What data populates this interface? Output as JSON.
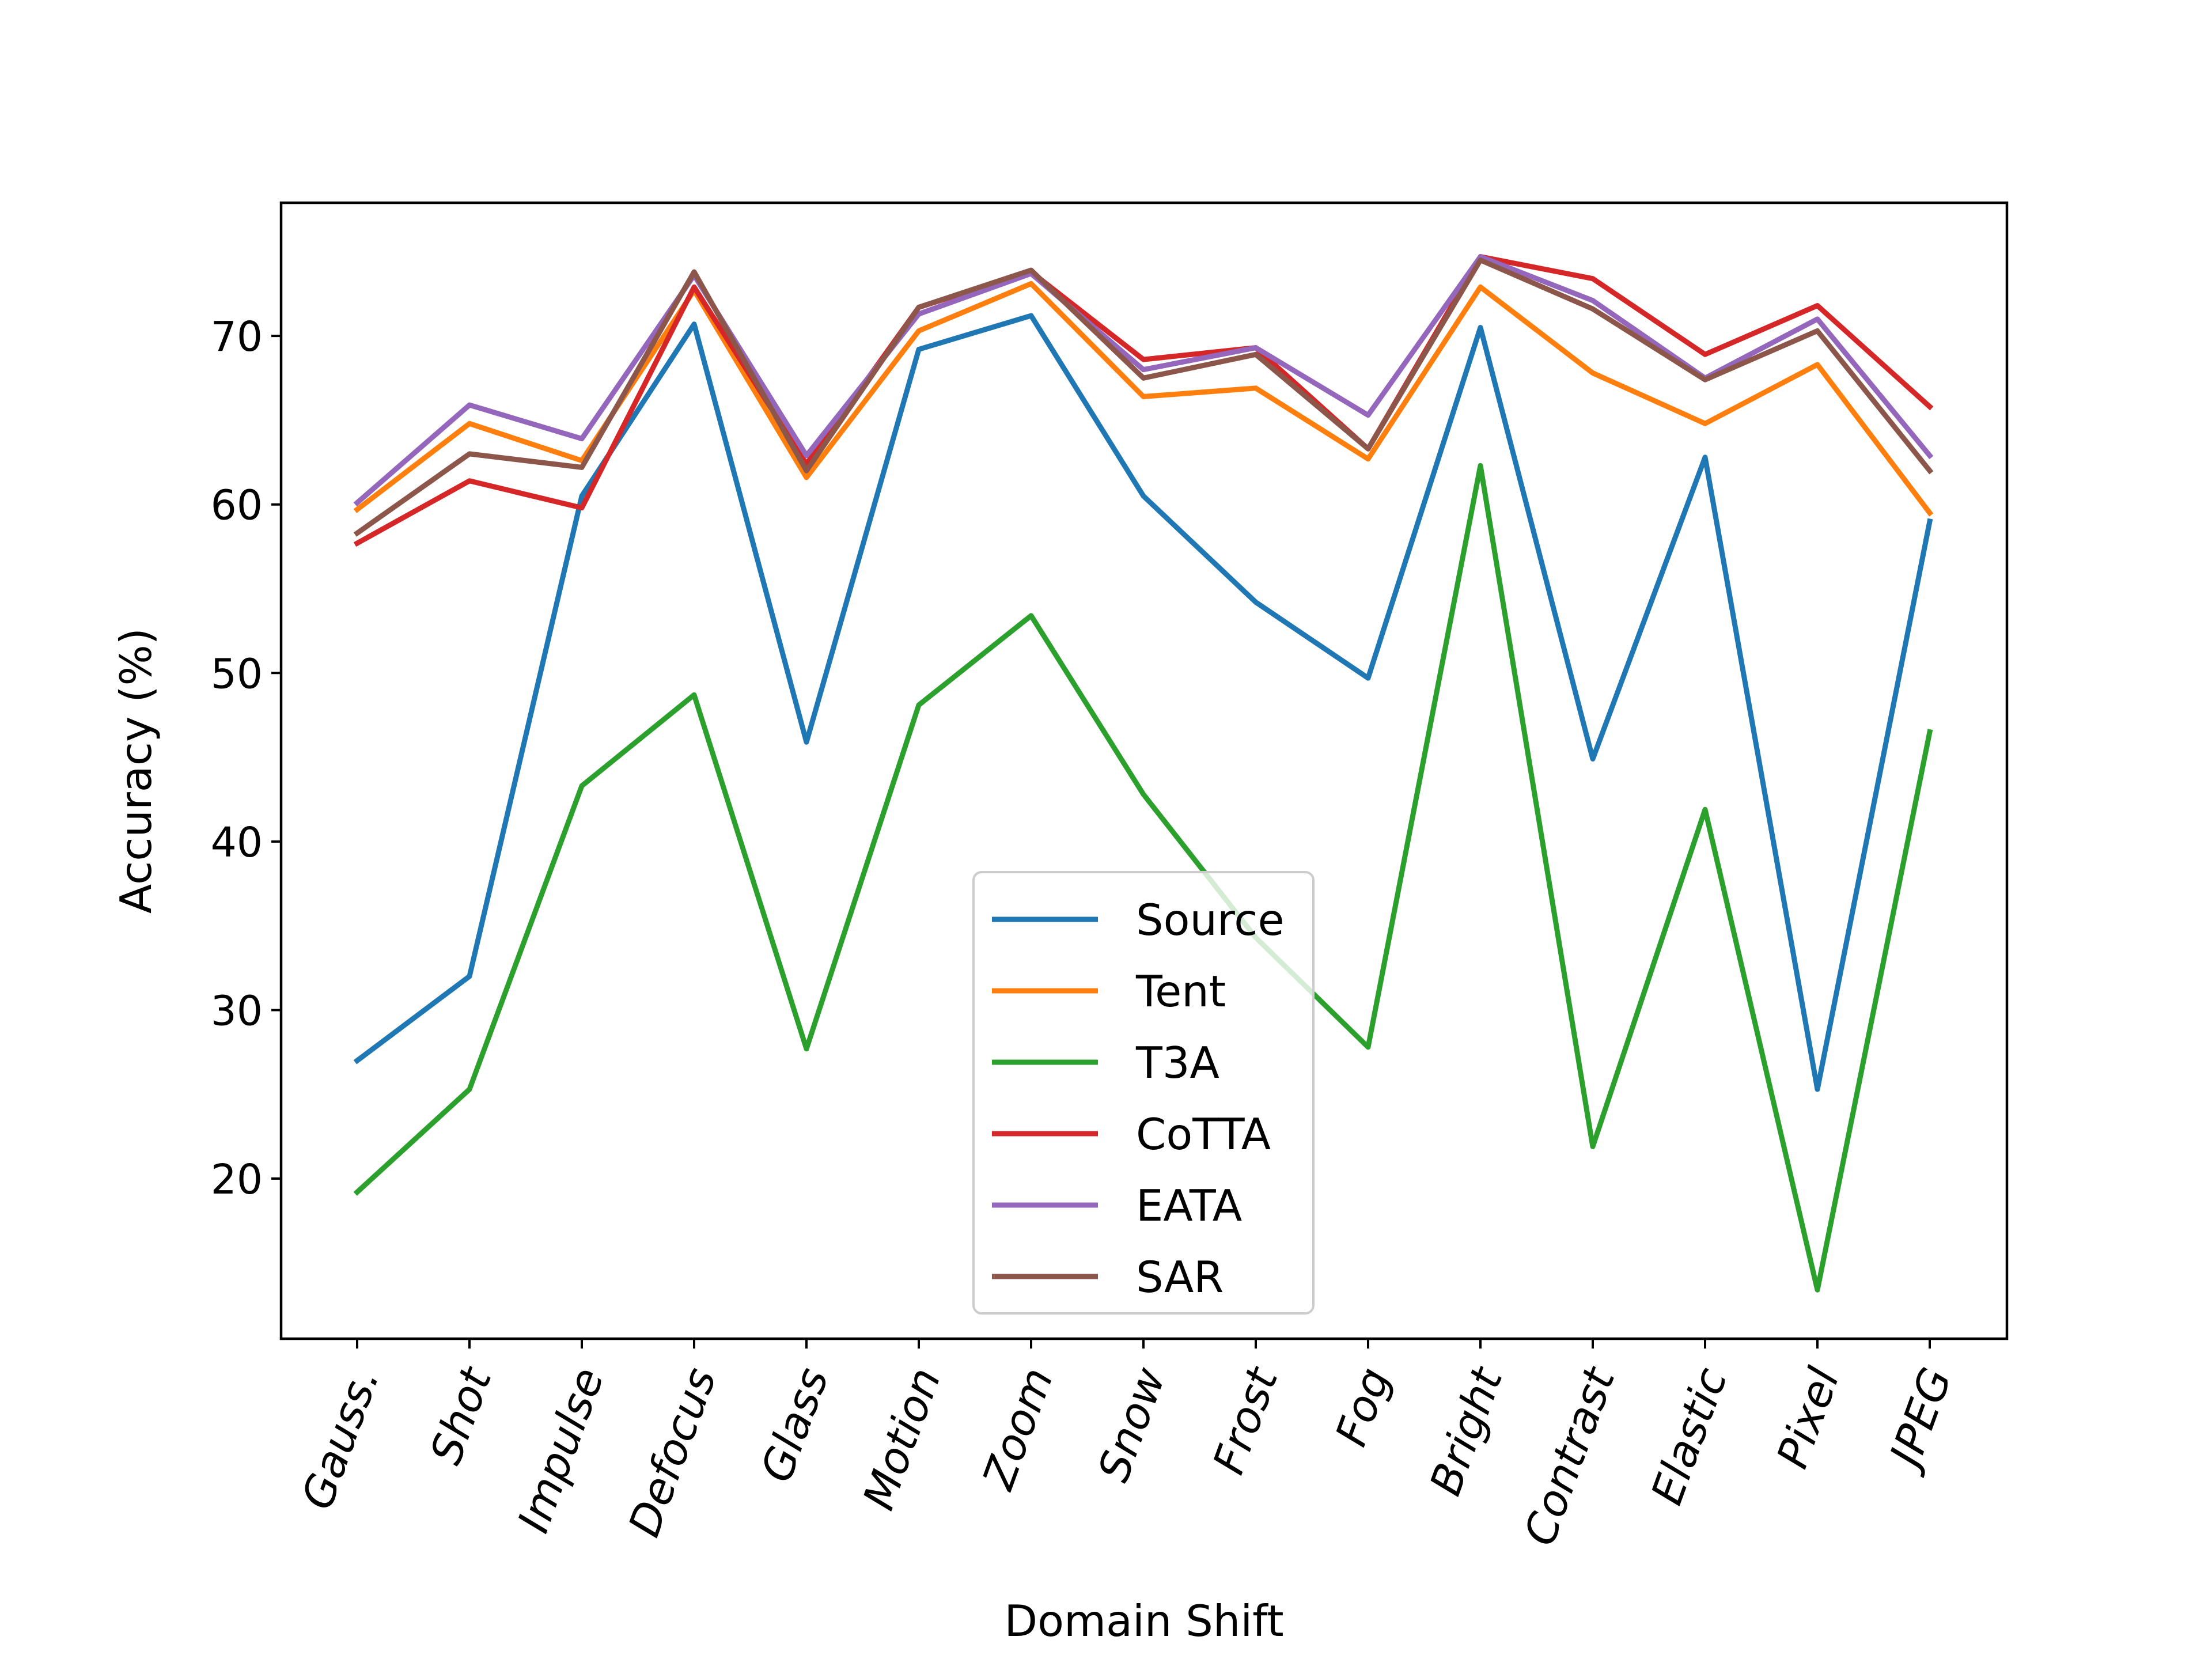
{
  "chart_data": {
    "type": "line",
    "title": "",
    "xlabel": "Domain Shift",
    "ylabel": "Accuracy (%)",
    "categories": [
      "Gauss.",
      "Shot",
      "Impulse",
      "Defocus",
      "Glass",
      "Motion",
      "Zoom",
      "Snow",
      "Frost",
      "Fog",
      "Bright",
      "Contrast",
      "Elastic",
      "Pixel",
      "JPEG"
    ],
    "ylim": [
      10.5,
      77.9
    ],
    "yticks": [
      20,
      30,
      40,
      50,
      60,
      70
    ],
    "grid": false,
    "legend_position": "lower center",
    "series": [
      {
        "name": "Source",
        "color": "#1f77b4",
        "values": [
          27.0,
          32.0,
          60.5,
          70.7,
          45.9,
          69.2,
          71.2,
          60.5,
          54.2,
          49.7,
          70.5,
          44.9,
          62.8,
          25.3,
          59.0
        ]
      },
      {
        "name": "Tent",
        "color": "#ff7f0e",
        "values": [
          59.7,
          64.8,
          62.6,
          72.7,
          61.6,
          70.3,
          73.1,
          66.4,
          66.9,
          62.7,
          72.9,
          67.8,
          64.8,
          68.3,
          59.5
        ]
      },
      {
        "name": "T3A",
        "color": "#2ca02c",
        "values": [
          19.2,
          25.3,
          43.3,
          48.7,
          27.7,
          48.1,
          53.4,
          42.8,
          34.3,
          27.8,
          62.3,
          21.9,
          41.9,
          13.4,
          46.5
        ]
      },
      {
        "name": "CoTTA",
        "color": "#d62728",
        "values": [
          57.7,
          61.4,
          59.8,
          72.9,
          62.4,
          71.7,
          73.8,
          68.6,
          69.3,
          63.3,
          74.7,
          73.4,
          68.9,
          71.8,
          65.8
        ]
      },
      {
        "name": "EATA",
        "color": "#9467bd",
        "values": [
          60.1,
          65.9,
          63.9,
          73.6,
          62.9,
          71.3,
          73.7,
          68.0,
          69.3,
          65.3,
          74.7,
          72.1,
          67.5,
          71.0,
          62.9
        ]
      },
      {
        "name": "SAR",
        "color": "#8c564b",
        "values": [
          58.3,
          63.0,
          62.2,
          73.8,
          62.0,
          71.7,
          73.9,
          67.5,
          68.9,
          63.3,
          74.5,
          71.6,
          67.4,
          70.3,
          62.0
        ]
      }
    ]
  }
}
